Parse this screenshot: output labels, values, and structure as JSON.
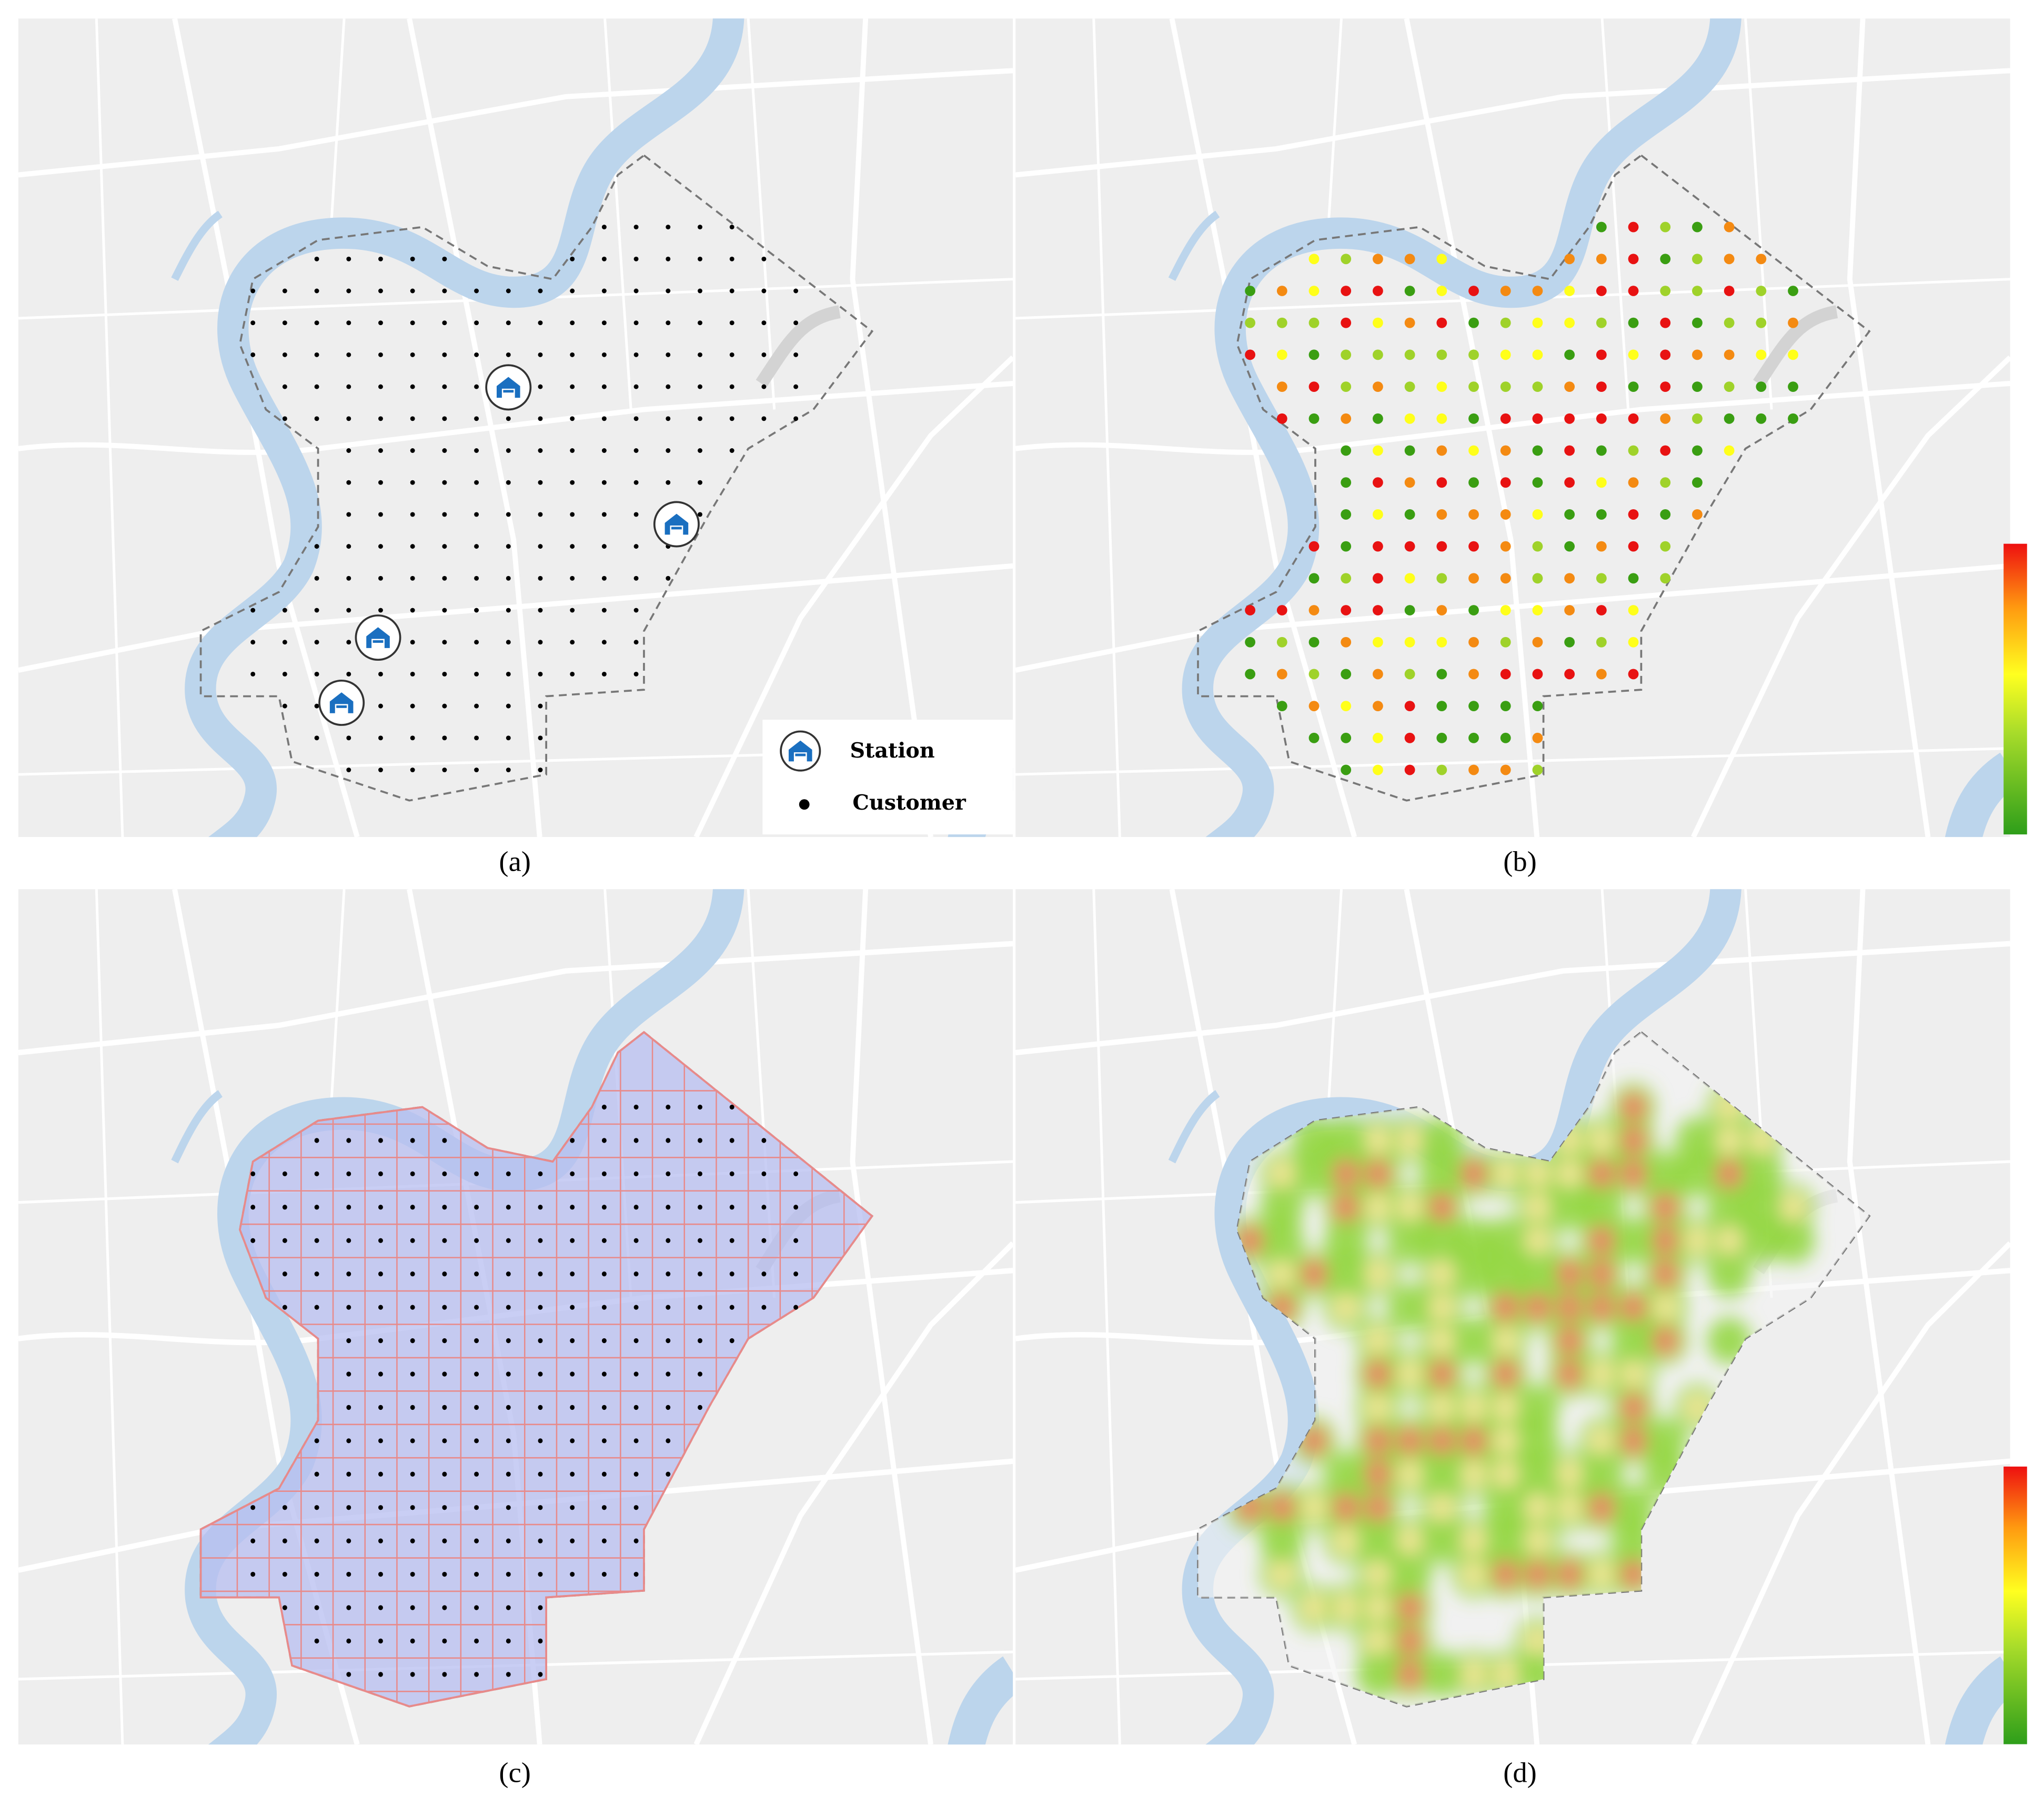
{
  "panels": [
    {
      "caption": "(a)"
    },
    {
      "caption": "(b)"
    },
    {
      "caption": "(c)"
    },
    {
      "caption": "(d)"
    }
  ],
  "legend": {
    "items": [
      "Station",
      "Customer"
    ]
  }
}
